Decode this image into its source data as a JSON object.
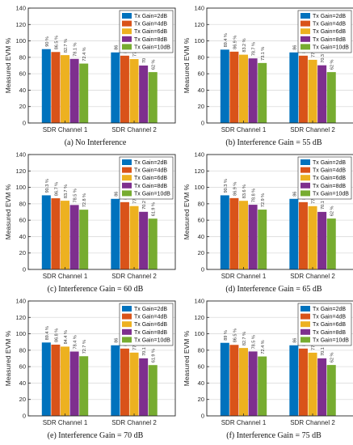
{
  "colors": {
    "series": [
      "#0072BD",
      "#D95319",
      "#EDB120",
      "#7E2F8E",
      "#77AC30"
    ],
    "grid": "#dcdcdc",
    "axis": "#262626"
  },
  "chart_data": [
    {
      "type": "bar",
      "caption": "(a) No Interference",
      "categories": [
        "SDR Channel 1",
        "SDR Channel 2"
      ],
      "ylabel": "Measured EVM %",
      "ylim": [
        0,
        140
      ],
      "yticks": [
        0,
        20,
        40,
        60,
        80,
        100,
        120,
        140
      ],
      "grid": true,
      "legend_position": "top-right",
      "series": [
        {
          "name": "Tx Gain=2dB",
          "values": [
            90,
            86
          ],
          "labels": [
            "90 %",
            "86"
          ]
        },
        {
          "name": "Tx Gain=4dB",
          "values": [
            86.5,
            82
          ],
          "labels": [
            "86.5 %",
            "82"
          ]
        },
        {
          "name": "Tx Gain=6dB",
          "values": [
            82.7,
            77.9
          ],
          "labels": [
            "82.7 %",
            "77.9"
          ]
        },
        {
          "name": "Tx Gain=8dB",
          "values": [
            78.1,
            70
          ],
          "labels": [
            "78.1 %",
            "70"
          ]
        },
        {
          "name": "Tx Gain=10dB",
          "values": [
            72.4,
            62
          ],
          "labels": [
            "72.4 %",
            "62 %"
          ]
        }
      ]
    },
    {
      "type": "bar",
      "caption": "(b) Interference Gain = 55 dB",
      "categories": [
        "SDR Channel 1",
        "SDR Channel 2"
      ],
      "ylabel": "Measured EVM %",
      "ylim": [
        0,
        140
      ],
      "yticks": [
        0,
        20,
        40,
        60,
        80,
        100,
        120,
        140
      ],
      "grid": true,
      "legend_position": "top-right",
      "series": [
        {
          "name": "Tx Gain=2dB",
          "values": [
            89.4,
            86
          ],
          "labels": [
            "89.4 %",
            "86"
          ]
        },
        {
          "name": "Tx Gain=4dB",
          "values": [
            86.9,
            82
          ],
          "labels": [
            "86.9 %",
            "82"
          ]
        },
        {
          "name": "Tx Gain=6dB",
          "values": [
            83.2,
            77
          ],
          "labels": [
            "83.2 %",
            "77"
          ]
        },
        {
          "name": "Tx Gain=8dB",
          "values": [
            78.7,
            70.3
          ],
          "labels": [
            "78.7 %",
            "70.3 %"
          ]
        },
        {
          "name": "Tx Gain=10dB",
          "values": [
            73.1,
            62
          ],
          "labels": [
            "73.1 %",
            "62 %"
          ]
        }
      ]
    },
    {
      "type": "bar",
      "caption": "(c) Interference Gain = 60 dB",
      "categories": [
        "SDR Channel 1",
        "SDR Channel 2"
      ],
      "ylabel": "Measured EVM %",
      "ylim": [
        0,
        140
      ],
      "yticks": [
        0,
        20,
        40,
        60,
        80,
        100,
        120,
        140
      ],
      "grid": true,
      "legend_position": "top-right",
      "series": [
        {
          "name": "Tx Gain=2dB",
          "values": [
            90.3,
            86
          ],
          "labels": [
            "90.3 %",
            "86"
          ]
        },
        {
          "name": "Tx Gain=4dB",
          "values": [
            86.7,
            82
          ],
          "labels": [
            "86.7 %",
            "82"
          ]
        },
        {
          "name": "Tx Gain=6dB",
          "values": [
            83.7,
            77.2
          ],
          "labels": [
            "83.7 %",
            "77.2"
          ]
        },
        {
          "name": "Tx Gain=8dB",
          "values": [
            78.5,
            70.2
          ],
          "labels": [
            "78.5 %",
            "70.2 %"
          ]
        },
        {
          "name": "Tx Gain=10dB",
          "values": [
            72.8,
            61.9
          ],
          "labels": [
            "72.8 %",
            "61.9 %"
          ]
        }
      ]
    },
    {
      "type": "bar",
      "caption": "(d) Interference Gain = 65 dB",
      "categories": [
        "SDR Channel 1",
        "SDR Channel 2"
      ],
      "ylabel": "Measured EVM %",
      "ylim": [
        0,
        140
      ],
      "yticks": [
        0,
        20,
        40,
        60,
        80,
        100,
        120,
        140
      ],
      "grid": true,
      "legend_position": "top-right",
      "series": [
        {
          "name": "Tx Gain=2dB",
          "values": [
            90.3,
            86
          ],
          "labels": [
            "90.3 %",
            "86"
          ]
        },
        {
          "name": "Tx Gain=4dB",
          "values": [
            86.9,
            82
          ],
          "labels": [
            "86.9 %",
            "82"
          ]
        },
        {
          "name": "Tx Gain=6dB",
          "values": [
            83.6,
            77.1
          ],
          "labels": [
            "83.6 %",
            "77.1"
          ]
        },
        {
          "name": "Tx Gain=8dB",
          "values": [
            78.8,
            70.1
          ],
          "labels": [
            "78.8 %",
            "70.1 %"
          ]
        },
        {
          "name": "Tx Gain=10dB",
          "values": [
            72.9,
            62
          ],
          "labels": [
            "72.9 %",
            "62 %"
          ]
        }
      ]
    },
    {
      "type": "bar",
      "caption": "(e) Interference Gain = 70 dB",
      "categories": [
        "SDR Channel 1",
        "SDR Channel 2"
      ],
      "ylabel": "Measured EVM %",
      "ylim": [
        0,
        140
      ],
      "yticks": [
        0,
        20,
        40,
        60,
        80,
        100,
        120,
        140
      ],
      "grid": true,
      "legend_position": "top-right",
      "series": [
        {
          "name": "Tx Gain=2dB",
          "values": [
            89.4,
            86
          ],
          "labels": [
            "89.4 %",
            "86"
          ]
        },
        {
          "name": "Tx Gain=4dB",
          "values": [
            86.8,
            82
          ],
          "labels": [
            "86.8 %",
            "82"
          ]
        },
        {
          "name": "Tx Gain=6dB",
          "values": [
            84.4,
            77.1
          ],
          "labels": [
            "84.4 %",
            "77.1"
          ]
        },
        {
          "name": "Tx Gain=8dB",
          "values": [
            78.4,
            70.1
          ],
          "labels": [
            "78.4 %",
            "70.1 %"
          ]
        },
        {
          "name": "Tx Gain=10dB",
          "values": [
            72.7,
            61.9
          ],
          "labels": [
            "72.7 %",
            "61.9 %"
          ]
        }
      ]
    },
    {
      "type": "bar",
      "caption": "(f) Interference Gain = 75 dB",
      "categories": [
        "SDR Channel 1",
        "SDR Channel 2"
      ],
      "ylabel": "Measured EVM %",
      "ylim": [
        0,
        140
      ],
      "yticks": [
        0,
        20,
        40,
        60,
        80,
        100,
        120,
        140
      ],
      "grid": true,
      "legend_position": "top-right",
      "series": [
        {
          "name": "Tx Gain=2dB",
          "values": [
            89,
            86
          ],
          "labels": [
            "89 %",
            "86"
          ]
        },
        {
          "name": "Tx Gain=4dB",
          "values": [
            86.5,
            82
          ],
          "labels": [
            "86.5 %",
            "82"
          ]
        },
        {
          "name": "Tx Gain=6dB",
          "values": [
            82.7,
            77
          ],
          "labels": [
            "82.7 %",
            "77"
          ]
        },
        {
          "name": "Tx Gain=8dB",
          "values": [
            78.5,
            70.1
          ],
          "labels": [
            "78.5 %",
            "70.1 %"
          ]
        },
        {
          "name": "Tx Gain=10dB",
          "values": [
            72.4,
            62
          ],
          "labels": [
            "72.4 %",
            "62 %"
          ]
        }
      ]
    }
  ]
}
